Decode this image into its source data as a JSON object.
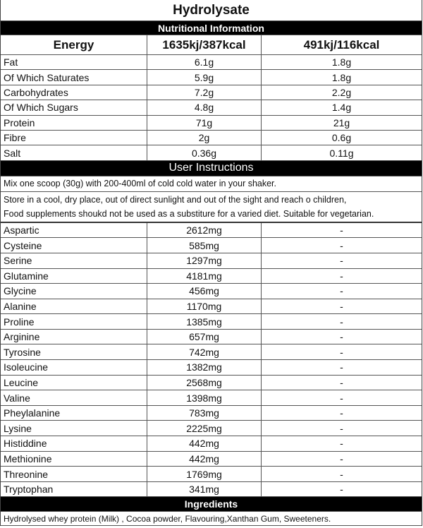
{
  "title": "Hydrolysate",
  "nutrition": {
    "header": "Nutritional Information",
    "energy": {
      "label": "Energy",
      "per100": "1635kj/387kcal",
      "perServing": "491kj/116kcal"
    },
    "rows": [
      {
        "label": "Fat",
        "per100": "6.1g",
        "perServing": "1.8g"
      },
      {
        "label": "Of Which Saturates",
        "per100": "5.9g",
        "perServing": "1.8g"
      },
      {
        "label": "Carbohydrates",
        "per100": "7.2g",
        "perServing": "2.2g"
      },
      {
        "label": "Of Which Sugars",
        "per100": "4.8g",
        "perServing": "1.4g"
      },
      {
        "label": "Protein",
        "per100": "71g",
        "perServing": "21g"
      },
      {
        "label": "Fibre",
        "per100": "2g",
        "perServing": "0.6g"
      },
      {
        "label": "Salt",
        "per100": "0.36g",
        "perServing": "0.11g"
      }
    ]
  },
  "instructions": {
    "header": "User Instructions",
    "lines": [
      "Mix one scoop (30g) with 200-400ml of cold cold water in your shaker.",
      "Store in a cool, dry place, out of direct sunlight and out of the sight and reach o children,",
      "Food supplements shoukd not be used as a substiture for a varied diet. Suitable for vegetarian."
    ]
  },
  "amino": [
    {
      "label": "Aspartic",
      "value": "2612mg",
      "other": "-"
    },
    {
      "label": "Cysteine",
      "value": "585mg",
      "other": "-"
    },
    {
      "label": "Serine",
      "value": "1297mg",
      "other": "-"
    },
    {
      "label": "Glutamine",
      "value": "4181mg",
      "other": "-"
    },
    {
      "label": "Glycine",
      "value": "456mg",
      "other": "-"
    },
    {
      "label": "Alanine",
      "value": "1170mg",
      "other": "-"
    },
    {
      "label": "Proline",
      "value": "1385mg",
      "other": "-"
    },
    {
      "label": "Arginine",
      "value": "657mg",
      "other": "-"
    },
    {
      "label": "Tyrosine",
      "value": "742mg",
      "other": "-"
    },
    {
      "label": "Isoleucine",
      "value": "1382mg",
      "other": "-"
    },
    {
      "label": "Leucine",
      "value": "2568mg",
      "other": "-"
    },
    {
      "label": "Valine",
      "value": "1398mg",
      "other": "-"
    },
    {
      "label": "Pheylalanine",
      "value": "783mg",
      "other": "-"
    },
    {
      "label": "Lysine",
      "value": "2225mg",
      "other": "-"
    },
    {
      "label": "Histiddine",
      "value": "442mg",
      "other": "-"
    },
    {
      "label": "Methionine",
      "value": "442mg",
      "other": "-"
    },
    {
      "label": "Threonine",
      "value": "1769mg",
      "other": "-"
    },
    {
      "label": "Tryptophan",
      "value": "341mg",
      "other": "-"
    }
  ],
  "ingredients": {
    "header": "Ingredients",
    "text": "Hydrolysed whey protein (Milk) , Cocoa powder, Flavouring,Xanthan Gum, Sweeteners."
  }
}
